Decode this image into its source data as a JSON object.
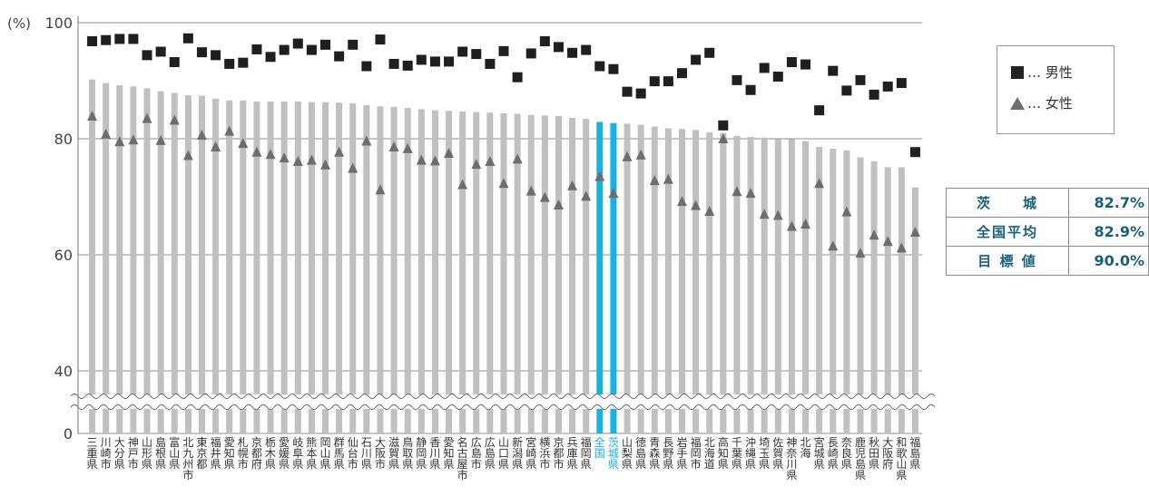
{
  "chart_data": {
    "type": "bar",
    "y_unit_label": "(%)",
    "y_ticks": [
      "100",
      "80",
      "60",
      "40",
      "0"
    ],
    "categories": [
      "三重県",
      "川崎市",
      "大分県",
      "神戸市",
      "山形県",
      "島根県",
      "富山県",
      "北九州市",
      "東京都",
      "福井県",
      "愛知県",
      "札幌市",
      "京都府",
      "栃木県",
      "愛媛県",
      "岐阜県",
      "熊本県",
      "岡山県",
      "群馬県",
      "仙台市",
      "石川県",
      "大阪市",
      "滋賀県",
      "鳥取県",
      "静岡県",
      "香川県",
      "愛知県",
      "名古屋市",
      "広島市",
      "広島県",
      "山口県",
      "新潟県",
      "宮崎県",
      "横浜市",
      "京都市",
      "兵庫県",
      "福岡県",
      "全国",
      "茨城県",
      "山梨県",
      "徳島県",
      "青森県",
      "長野県",
      "岩手県",
      "福岡市",
      "北海道",
      "高知県",
      "千葉県",
      "沖縄県",
      "埼玉県",
      "佐賀県",
      "神奈川県",
      "北海道",
      "宮城県",
      "長崎県",
      "奈良県",
      "鹿児島県",
      "秋田県",
      "大阪府",
      "和歌山県",
      "福島県"
    ],
    "x_labels": [
      "三重県",
      "川崎市",
      "大分県",
      "神戸市",
      "山形県",
      "島根県",
      "富山県",
      "北九州市",
      "東京都",
      "福井県",
      "愛知県",
      "札幌市",
      "京都府",
      "栃木県",
      "愛媛県",
      "岐阜県",
      "熊本県",
      "岡山県",
      "群馬県",
      "仙台市",
      "石川県",
      "大阪市",
      "滋賀県",
      "鳥取県",
      "静岡県",
      "香川県",
      "愛知県",
      "名古屋市",
      "広島市",
      "広島県",
      "山口県",
      "新潟県",
      "宮崎県",
      "横浜市",
      "京都市",
      "兵庫県",
      "福岡県",
      "全国",
      "茨城県",
      "山梨県",
      "徳島県",
      "青森県",
      "長野県",
      "岩手県",
      "福岡市",
      "北海道",
      "高知県",
      "千葉県",
      "沖縄県",
      "埼玉県",
      "佐賀県",
      "神奈川県",
      "北海",
      "宮城県",
      "長崎県",
      "奈良県",
      "鹿児島県",
      "秋田県",
      "大阪府",
      "和歌山県",
      "福島県"
    ],
    "x_labels_note": "",
    "highlight": [
      "全国",
      "茨城県"
    ],
    "series": [
      {
        "name": "",
        "kind": "bar",
        "values": [
          90.2,
          89.6,
          89.2,
          89.0,
          88.7,
          88.2,
          87.9,
          87.5,
          87.4,
          86.9,
          86.6,
          86.6,
          86.4,
          86.4,
          86.4,
          86.4,
          86.3,
          86.3,
          86.2,
          86.1,
          85.8,
          85.6,
          85.5,
          85.3,
          85.1,
          84.9,
          84.8,
          84.7,
          84.6,
          84.5,
          84.4,
          84.3,
          84.1,
          84.0,
          83.9,
          83.6,
          83.4,
          82.9,
          82.7,
          82.6,
          82.4,
          82.1,
          81.8,
          81.7,
          81.5,
          81.1,
          81.0,
          80.5,
          80.3,
          80.2,
          79.9,
          79.9,
          79.6,
          78.6,
          78.3,
          78.0,
          76.8,
          76.1,
          75.1,
          75.1,
          71.6
        ]
      },
      {
        "name": "男性",
        "kind": "square",
        "values": [
          96.8,
          97.0,
          97.2,
          97.2,
          94.4,
          95.0,
          93.2,
          97.3,
          94.9,
          94.4,
          92.9,
          93.1,
          95.4,
          94.1,
          95.3,
          96.4,
          95.3,
          96.2,
          94.2,
          96.2,
          92.5,
          97.1,
          92.9,
          92.6,
          93.6,
          93.3,
          93.3,
          95.0,
          94.6,
          92.9,
          95.1,
          90.6,
          94.7,
          96.8,
          95.8,
          94.8,
          95.3,
          92.5,
          92.0,
          88.1,
          87.8,
          89.9,
          89.9,
          91.3,
          93.6,
          94.8,
          82.3,
          90.1,
          88.4,
          92.2,
          90.7,
          93.2,
          92.8,
          84.9,
          91.7,
          88.3,
          90.1,
          87.6,
          89.0,
          89.6,
          77.7
        ]
      },
      {
        "name": "女性",
        "kind": "triangle",
        "values": [
          83.9,
          80.8,
          79.5,
          79.8,
          83.5,
          79.7,
          83.2,
          77.1,
          80.6,
          78.6,
          81.3,
          79.2,
          77.7,
          77.3,
          76.7,
          76.1,
          76.3,
          75.5,
          77.7,
          74.9,
          79.6,
          71.2,
          78.6,
          78.3,
          76.3,
          76.2,
          77.5,
          72.1,
          75.6,
          76.1,
          72.3,
          76.5,
          71.0,
          69.9,
          68.6,
          71.9,
          70.1,
          73.5,
          70.6,
          76.9,
          77.2,
          72.8,
          73.0,
          69.2,
          68.5,
          67.5,
          80.0,
          70.9,
          70.6,
          67.0,
          66.8,
          64.9,
          65.3,
          72.3,
          61.5,
          67.4,
          60.3,
          63.4,
          62.3,
          61.2,
          63.9
        ]
      }
    ],
    "ylim": [
      0,
      100
    ],
    "y_axis_break": [
      0,
      40
    ],
    "grid": true
  },
  "legend": {
    "male_label": "… 男性",
    "female_label": "… 女性"
  },
  "summary_table": [
    {
      "label": "茨　　城",
      "value": "82.7%"
    },
    {
      "label": "全国平均",
      "value": "82.9%"
    },
    {
      "label": "目 標 値",
      "value": "90.0%"
    }
  ],
  "colors": {
    "bar": "#c0c0c0",
    "bar_highlight": "#1ab0e0",
    "male_marker": "#1f1f1f",
    "female_marker": "#6d6d6d",
    "grid": "#8c8c8c",
    "table_text": "#19607f"
  }
}
